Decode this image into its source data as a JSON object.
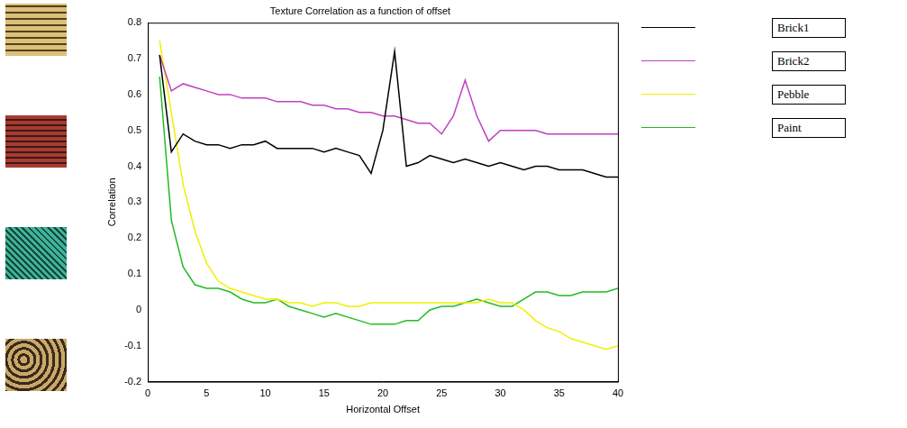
{
  "chart_data": {
    "type": "line",
    "title": "Texture Correlation as a function of offset",
    "x_label": "Horizontal Offset",
    "y_label": "Correlation",
    "x": [
      1,
      2,
      3,
      4,
      5,
      6,
      7,
      8,
      9,
      10,
      11,
      12,
      13,
      14,
      15,
      16,
      17,
      18,
      19,
      20,
      21,
      22,
      23,
      24,
      25,
      26,
      27,
      28,
      29,
      30,
      31,
      32,
      33,
      34,
      35,
      36,
      37,
      38,
      39,
      40
    ],
    "series": [
      {
        "name": "Brick1",
        "color": "#000000",
        "values": [
          0.71,
          0.44,
          0.49,
          0.47,
          0.46,
          0.46,
          0.45,
          0.46,
          0.46,
          0.47,
          0.45,
          0.45,
          0.45,
          0.45,
          0.44,
          0.45,
          0.44,
          0.43,
          0.38,
          0.5,
          0.72,
          0.4,
          0.41,
          0.43,
          0.42,
          0.41,
          0.42,
          0.41,
          0.4,
          0.41,
          0.4,
          0.39,
          0.4,
          0.4,
          0.39,
          0.39,
          0.39,
          0.38,
          0.37,
          0.37
        ]
      },
      {
        "name": "Brick2",
        "color": "#c040c0",
        "values": [
          0.71,
          0.61,
          0.63,
          0.62,
          0.61,
          0.6,
          0.6,
          0.59,
          0.59,
          0.59,
          0.58,
          0.58,
          0.58,
          0.57,
          0.57,
          0.56,
          0.56,
          0.55,
          0.55,
          0.54,
          0.54,
          0.53,
          0.52,
          0.52,
          0.49,
          0.54,
          0.64,
          0.54,
          0.47,
          0.5,
          0.5,
          0.5,
          0.5,
          0.49,
          0.49,
          0.49,
          0.49,
          0.49,
          0.49,
          0.49
        ]
      },
      {
        "name": "Pebble",
        "color": "#f0f000",
        "values": [
          0.75,
          0.55,
          0.35,
          0.22,
          0.13,
          0.08,
          0.06,
          0.05,
          0.04,
          0.03,
          0.03,
          0.02,
          0.02,
          0.01,
          0.02,
          0.02,
          0.01,
          0.01,
          0.02,
          0.02,
          0.02,
          0.02,
          0.02,
          0.02,
          0.02,
          0.02,
          0.02,
          0.02,
          0.03,
          0.02,
          0.02,
          0.0,
          -0.03,
          -0.05,
          -0.06,
          -0.08,
          -0.09,
          -0.1,
          -0.11,
          -0.1
        ]
      },
      {
        "name": "Paint",
        "color": "#22bb22",
        "values": [
          0.65,
          0.25,
          0.12,
          0.07,
          0.06,
          0.06,
          0.05,
          0.03,
          0.02,
          0.02,
          0.03,
          0.01,
          0.0,
          -0.01,
          -0.02,
          -0.01,
          -0.02,
          -0.03,
          -0.04,
          -0.04,
          -0.04,
          -0.03,
          -0.03,
          0.0,
          0.01,
          0.01,
          0.02,
          0.03,
          0.02,
          0.01,
          0.01,
          0.03,
          0.05,
          0.05,
          0.04,
          0.04,
          0.05,
          0.05,
          0.05,
          0.06
        ]
      }
    ],
    "xlim": [
      0,
      40
    ],
    "xticks": [
      0,
      5,
      10,
      15,
      20,
      25,
      30,
      35,
      40
    ],
    "ylim": [
      -0.2,
      0.8
    ],
    "yticks": [
      -0.2,
      -0.1,
      0,
      0.1,
      0.2,
      0.3,
      0.4,
      0.5,
      0.6,
      0.7,
      0.8
    ],
    "grid": false,
    "legend": "right"
  }
}
